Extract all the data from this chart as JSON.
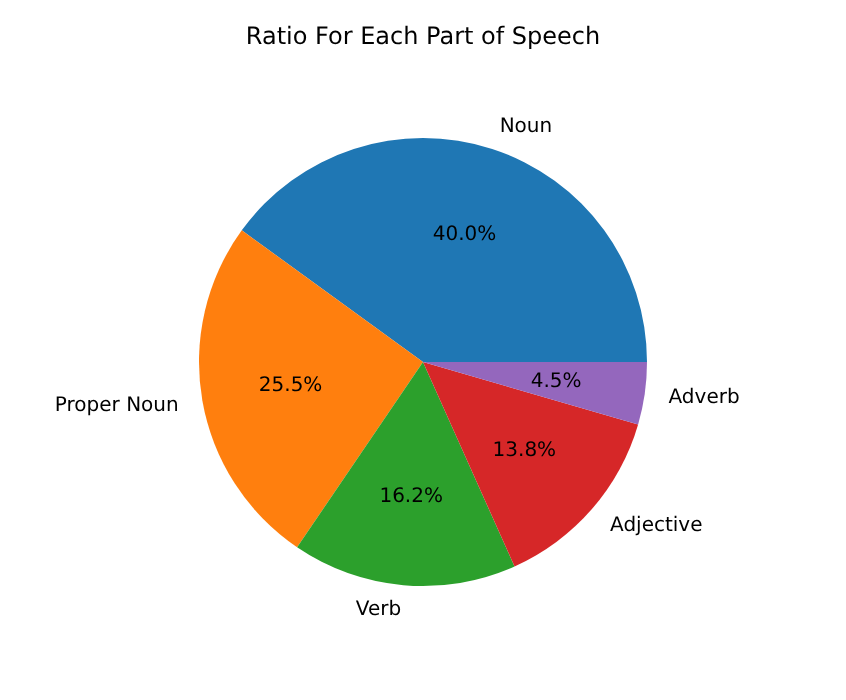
{
  "chart_data": {
    "type": "pie",
    "title": "Ratio For Each Part of Speech",
    "categories": [
      "Noun",
      "Proper Noun",
      "Verb",
      "Adjective",
      "Adverb"
    ],
    "values": [
      40.0,
      25.5,
      16.2,
      13.8,
      4.5
    ],
    "colors": [
      "#1f77b4",
      "#ff7f0e",
      "#2ca02c",
      "#d62728",
      "#9467bd"
    ],
    "value_labels": [
      "40.0%",
      "25.5%",
      "16.2%",
      "13.8%",
      "4.5%"
    ]
  }
}
